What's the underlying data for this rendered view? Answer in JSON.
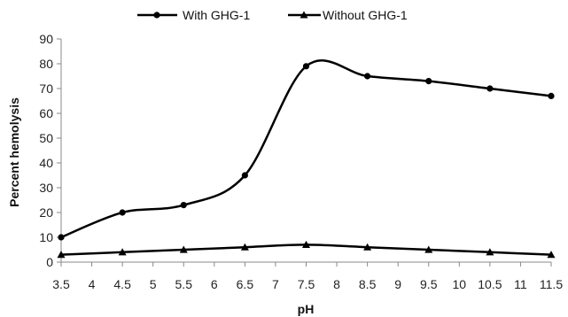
{
  "chart_data": {
    "type": "line",
    "xlabel": "pH",
    "ylabel": "Percent hemolysis",
    "x_ticks": [
      "3.5",
      "4",
      "4.5",
      "5",
      "5.5",
      "6",
      "6.5",
      "7",
      "7.5",
      "8",
      "8.5",
      "9",
      "9.5",
      "10",
      "10.5",
      "11",
      "11.5"
    ],
    "y_ticks": [
      "0",
      "10",
      "20",
      "30",
      "40",
      "50",
      "60",
      "70",
      "80",
      "90"
    ],
    "xlim": [
      3.5,
      11.5
    ],
    "ylim": [
      0,
      90
    ],
    "grid": false,
    "legend_position": "top-center",
    "series": [
      {
        "name": "With GHG-1",
        "marker": "circle",
        "color": "#000000",
        "x": [
          3.5,
          4.5,
          5.5,
          6.5,
          7.5,
          8.5,
          9.5,
          10.5,
          11.5
        ],
        "y": [
          10,
          20,
          23,
          35,
          79,
          75,
          73,
          70,
          67
        ]
      },
      {
        "name": "Without GHG-1",
        "marker": "triangle",
        "color": "#000000",
        "x": [
          3.5,
          4.5,
          5.5,
          6.5,
          7.5,
          8.5,
          9.5,
          10.5,
          11.5
        ],
        "y": [
          3,
          4,
          5,
          6,
          7,
          6,
          5,
          4,
          3
        ]
      }
    ]
  }
}
